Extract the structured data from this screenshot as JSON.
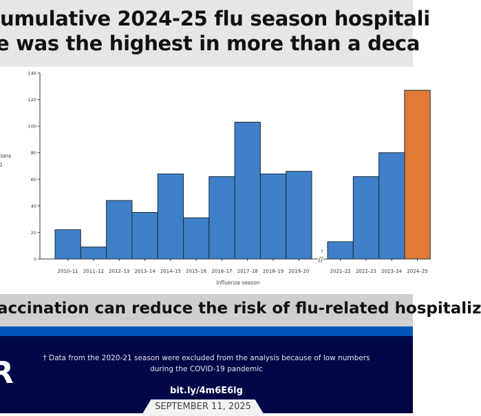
{
  "header": {
    "title_line1": "umulative 2024-25 flu season hospitali",
    "title_line2": "e was the highest in more than a deca"
  },
  "message": "accination can reduce the risk of flu-related hospitaliz",
  "footer": {
    "logo": "R",
    "note": "† Data from the 2020-21 season were excluded from the analysis because of low numbers during the COVID-19 pandemic",
    "link": "bit.ly/4m6E6lg",
    "date": "SEPTEMBER 11, 2025"
  },
  "chart_data": {
    "type": "bar",
    "xlabel": "Influenza season",
    "ylabel_fragment": [
      "tions",
      "0"
    ],
    "ylim": [
      0,
      140
    ],
    "yticks": [
      0,
      20,
      40,
      60,
      80,
      100,
      120,
      140
    ],
    "break_marker": "†",
    "categories": [
      "2010–11",
      "2011–12",
      "2012–13",
      "2013–14",
      "2014–15",
      "2015–16",
      "2016–17",
      "2017–18",
      "2018–19",
      "2019–20",
      "2021–22",
      "2022–23",
      "2023–24",
      "2024–25"
    ],
    "values": [
      22,
      9,
      44,
      35,
      64,
      31,
      62,
      103,
      64,
      66,
      13,
      62,
      80,
      127
    ],
    "colors": {
      "default": "#4080c8",
      "highlight": "#e07a36",
      "highlight_category": "2024–25"
    }
  }
}
